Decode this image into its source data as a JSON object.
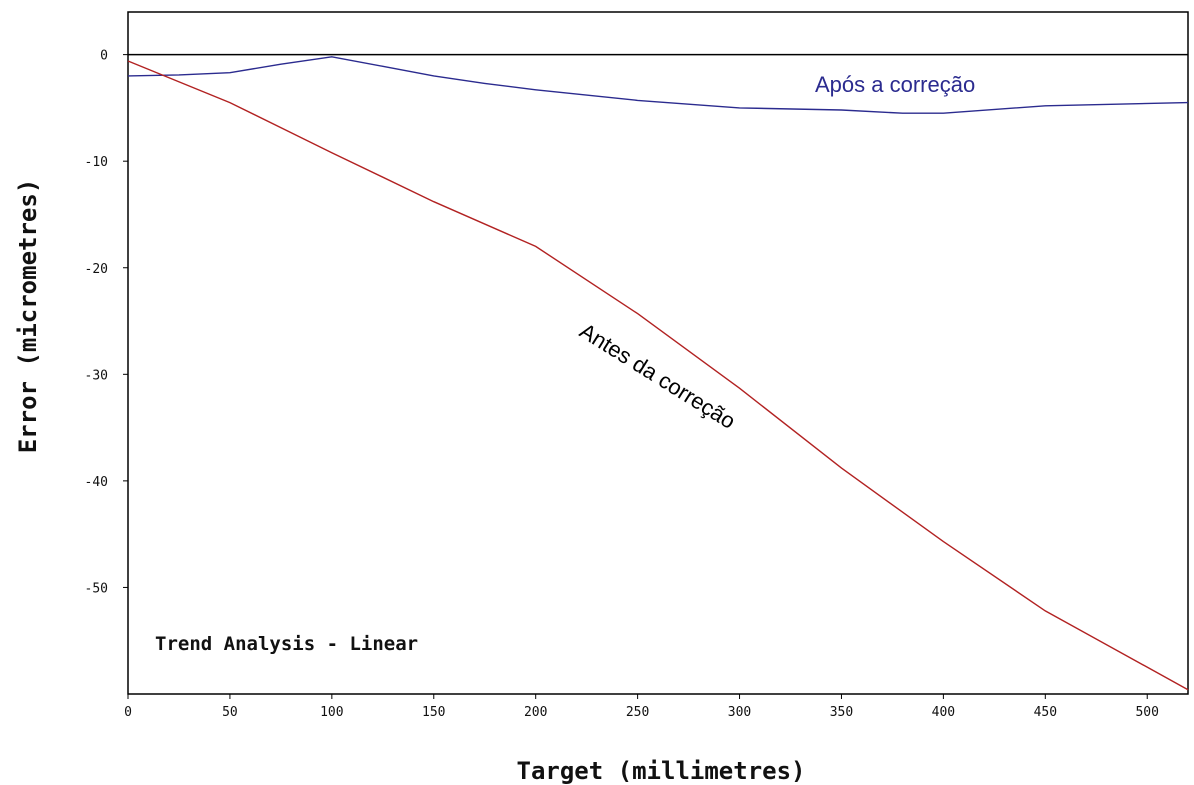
{
  "chart_data": {
    "type": "line",
    "title": "Trend Analysis - Linear",
    "xlabel": "Target (millimetres)",
    "ylabel": "Error (micrometres)",
    "xlim": [
      0,
      520
    ],
    "ylim": [
      -60,
      4
    ],
    "x_ticks": [
      0,
      50,
      100,
      150,
      200,
      250,
      300,
      350,
      400,
      450,
      500
    ],
    "y_ticks": [
      0,
      -10,
      -20,
      -30,
      -40,
      -50
    ],
    "grid": false,
    "series": [
      {
        "name": "Após a correção",
        "color": "#2b2b8f",
        "x": [
          0,
          25,
          50,
          75,
          100,
          125,
          150,
          175,
          200,
          250,
          300,
          350,
          380,
          400,
          450,
          520
        ],
        "y": [
          -2.0,
          -1.9,
          -1.7,
          -0.9,
          -0.2,
          -1.1,
          -2.0,
          -2.7,
          -3.3,
          -4.3,
          -5.0,
          -5.2,
          -5.5,
          -5.5,
          -4.8,
          -4.5
        ]
      },
      {
        "name": "Antes da correção",
        "color": "#b22222",
        "x": [
          0,
          50,
          100,
          150,
          200,
          250,
          300,
          350,
          400,
          450,
          520
        ],
        "y": [
          -0.6,
          -4.5,
          -9.2,
          -13.8,
          -18.0,
          -24.3,
          -31.3,
          -38.8,
          -45.7,
          -52.2,
          -59.6
        ]
      }
    ],
    "annotations": [
      {
        "text": "Após a correção",
        "series": 0
      },
      {
        "text": "Antes da correção",
        "series": 1
      }
    ]
  }
}
